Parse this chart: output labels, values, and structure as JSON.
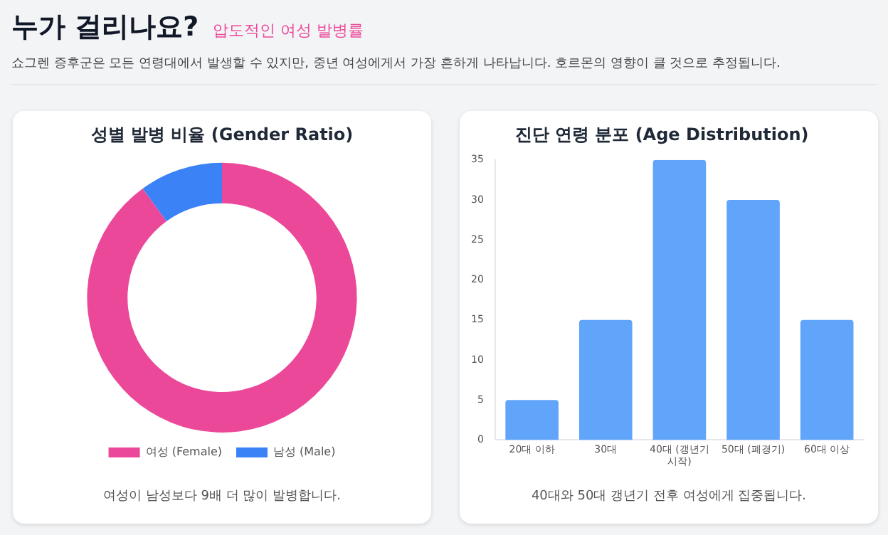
{
  "chart_data": [
    {
      "type": "donut",
      "title": "성별 발병 비율 (Gender Ratio)",
      "categories": [
        "여성 (Female)",
        "남성 (Male)"
      ],
      "values": [
        90,
        10
      ],
      "colors": [
        "#ec4899",
        "#3b82f6"
      ],
      "legend": "bottom",
      "annotations": [
        "누가 걸리나요?",
        "압도적인 여성 발병률",
        "쇼그렌 증후군은 모든 연령대에서 발생할 수 있지만, 중년 여성에게서 가장 흔하게 나타납니다. 호르몬의 영향이 클 것으로 추정됩니다.",
        "여성이 남성보다 9배 더 많이 발병합니다."
      ]
    },
    {
      "type": "bar",
      "title": "진단 연령 분포 (Age Distribution)",
      "categories": [
        "20대 이하",
        "30대",
        "40대 (갱년기 시작)",
        "50대 (폐경기)",
        "60대 이상"
      ],
      "values": [
        5,
        15,
        35,
        30,
        15
      ],
      "color": "#60a5fa",
      "ylim": [
        0,
        35
      ],
      "yticks": [
        0,
        5,
        10,
        15,
        20,
        25,
        30,
        35
      ],
      "annotations": [
        "40대와 50대 갱년기 전후 여성에게 집중됩니다."
      ]
    }
  ]
}
